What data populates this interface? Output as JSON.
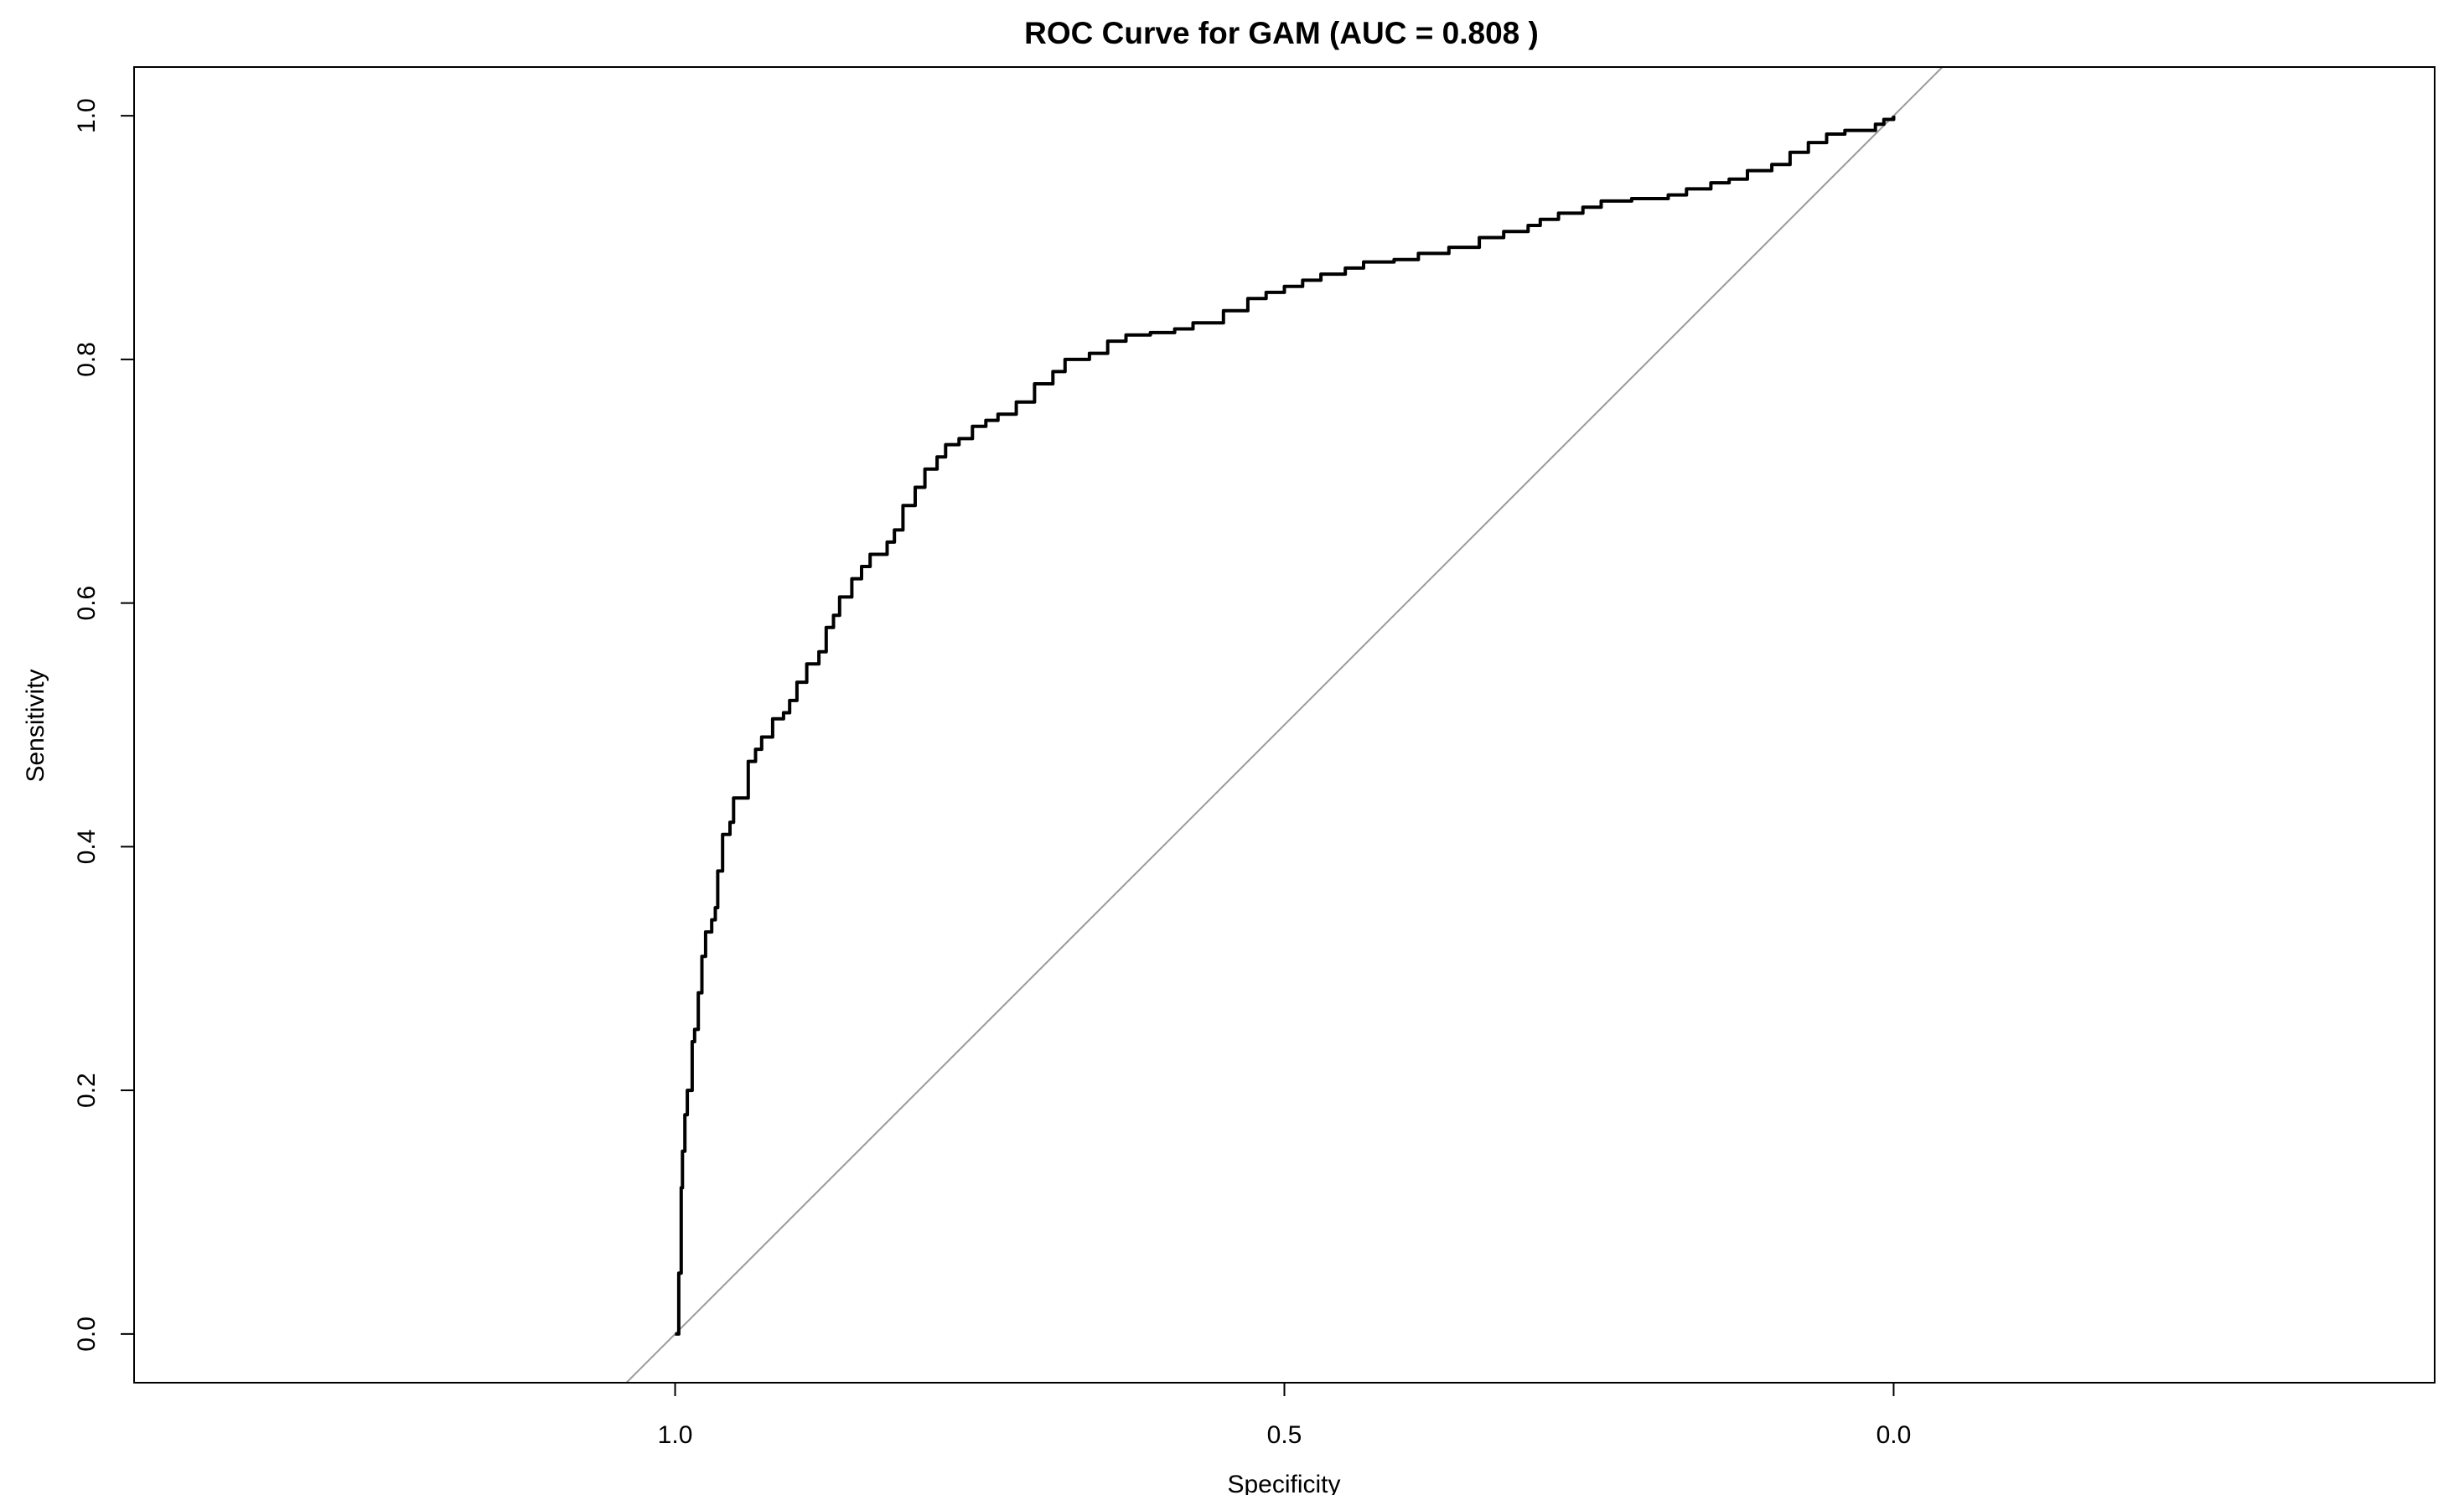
{
  "chart_data": {
    "type": "line",
    "title": "ROC Curve for GAM (AUC = 0.808 )",
    "xlabel": "Specificity",
    "ylabel": "Sensitivity",
    "x_reversed": true,
    "xlim": [
      1.444,
      -0.444
    ],
    "ylim": [
      -0.04,
      1.04
    ],
    "x_ticks": [
      1.0,
      0.5,
      0.0
    ],
    "x_tick_labels": [
      "1.0",
      "0.5",
      "0.0"
    ],
    "y_ticks": [
      0.0,
      0.2,
      0.4,
      0.6,
      0.8,
      1.0
    ],
    "y_tick_labels": [
      "0.0",
      "0.2",
      "0.4",
      "0.6",
      "0.8",
      "1.0"
    ],
    "grid": false,
    "reference_line": {
      "from": [
        1.0,
        0.0
      ],
      "to": [
        0.0,
        1.0
      ],
      "color": "#9a9a9a"
    },
    "series": [
      {
        "color": "#000000",
        "points": [
          [
            1.0,
            0.0
          ],
          [
            0.997,
            0.05
          ],
          [
            0.995,
            0.12
          ],
          [
            0.994,
            0.15
          ],
          [
            0.992,
            0.18
          ],
          [
            0.99,
            0.2
          ],
          [
            0.986,
            0.24
          ],
          [
            0.984,
            0.25
          ],
          [
            0.981,
            0.28
          ],
          [
            0.978,
            0.31
          ],
          [
            0.975,
            0.33
          ],
          [
            0.97,
            0.34
          ],
          [
            0.967,
            0.35
          ],
          [
            0.965,
            0.38
          ],
          [
            0.961,
            0.41
          ],
          [
            0.955,
            0.42
          ],
          [
            0.952,
            0.44
          ],
          [
            0.944,
            0.44
          ],
          [
            0.94,
            0.47
          ],
          [
            0.934,
            0.48
          ],
          [
            0.929,
            0.49
          ],
          [
            0.92,
            0.505
          ],
          [
            0.911,
            0.51
          ],
          [
            0.906,
            0.52
          ],
          [
            0.9,
            0.535
          ],
          [
            0.892,
            0.55
          ],
          [
            0.882,
            0.56
          ],
          [
            0.876,
            0.58
          ],
          [
            0.87,
            0.59
          ],
          [
            0.865,
            0.605
          ],
          [
            0.855,
            0.62
          ],
          [
            0.847,
            0.63
          ],
          [
            0.84,
            0.64
          ],
          [
            0.826,
            0.65
          ],
          [
            0.82,
            0.66
          ],
          [
            0.813,
            0.68
          ],
          [
            0.803,
            0.695
          ],
          [
            0.795,
            0.71
          ],
          [
            0.785,
            0.72
          ],
          [
            0.778,
            0.73
          ],
          [
            0.767,
            0.735
          ],
          [
            0.756,
            0.745
          ],
          [
            0.745,
            0.75
          ],
          [
            0.735,
            0.755
          ],
          [
            0.72,
            0.765
          ],
          [
            0.705,
            0.78
          ],
          [
            0.69,
            0.79
          ],
          [
            0.68,
            0.8
          ],
          [
            0.66,
            0.805
          ],
          [
            0.645,
            0.815
          ],
          [
            0.63,
            0.82
          ],
          [
            0.61,
            0.822
          ],
          [
            0.59,
            0.825
          ],
          [
            0.575,
            0.83
          ],
          [
            0.55,
            0.84
          ],
          [
            0.53,
            0.85
          ],
          [
            0.515,
            0.855
          ],
          [
            0.5,
            0.86
          ],
          [
            0.485,
            0.865
          ],
          [
            0.47,
            0.87
          ],
          [
            0.45,
            0.875
          ],
          [
            0.435,
            0.88
          ],
          [
            0.41,
            0.882
          ],
          [
            0.39,
            0.887
          ],
          [
            0.365,
            0.892
          ],
          [
            0.34,
            0.9
          ],
          [
            0.32,
            0.905
          ],
          [
            0.3,
            0.91
          ],
          [
            0.29,
            0.915
          ],
          [
            0.275,
            0.92
          ],
          [
            0.255,
            0.925
          ],
          [
            0.24,
            0.93
          ],
          [
            0.215,
            0.932
          ],
          [
            0.2,
            0.932
          ],
          [
            0.185,
            0.935
          ],
          [
            0.17,
            0.94
          ],
          [
            0.15,
            0.945
          ],
          [
            0.135,
            0.948
          ],
          [
            0.12,
            0.955
          ],
          [
            0.1,
            0.96
          ],
          [
            0.085,
            0.97
          ],
          [
            0.07,
            0.978
          ],
          [
            0.055,
            0.985
          ],
          [
            0.04,
            0.988
          ],
          [
            0.025,
            0.988
          ],
          [
            0.015,
            0.993
          ],
          [
            0.008,
            0.997
          ],
          [
            0.0,
            1.0
          ]
        ]
      }
    ]
  }
}
